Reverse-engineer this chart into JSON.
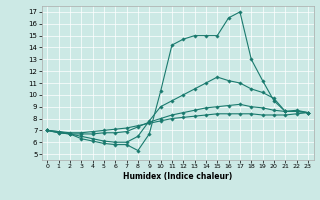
{
  "title": "",
  "xlabel": "Humidex (Indice chaleur)",
  "xlim": [
    -0.5,
    23.5
  ],
  "ylim": [
    4.5,
    17.5
  ],
  "xticks": [
    0,
    1,
    2,
    3,
    4,
    5,
    6,
    7,
    8,
    9,
    10,
    11,
    12,
    13,
    14,
    15,
    16,
    17,
    18,
    19,
    20,
    21,
    22,
    23
  ],
  "yticks": [
    5,
    6,
    7,
    8,
    9,
    10,
    11,
    12,
    13,
    14,
    15,
    16,
    17
  ],
  "bg_color": "#cce9e5",
  "line_color": "#1a7a6e",
  "line1_x": [
    0,
    1,
    2,
    3,
    4,
    5,
    6,
    7,
    8,
    9,
    10,
    11,
    12,
    13,
    14,
    15,
    16,
    17,
    18,
    19,
    20,
    21,
    22,
    23
  ],
  "line1_y": [
    7.0,
    6.9,
    6.7,
    6.3,
    6.1,
    5.9,
    5.8,
    5.8,
    5.3,
    6.7,
    10.3,
    14.2,
    14.7,
    15.0,
    15.0,
    15.0,
    16.5,
    17.0,
    13.0,
    11.2,
    9.5,
    8.6,
    8.6,
    8.5
  ],
  "line2_x": [
    0,
    1,
    2,
    3,
    4,
    5,
    6,
    7,
    8,
    9,
    10,
    11,
    12,
    13,
    14,
    15,
    16,
    17,
    18,
    19,
    20,
    21,
    22,
    23
  ],
  "line2_y": [
    7.0,
    6.8,
    6.7,
    6.5,
    6.3,
    6.1,
    6.0,
    6.0,
    6.5,
    7.8,
    9.0,
    9.5,
    10.0,
    10.5,
    11.0,
    11.5,
    11.2,
    11.0,
    10.5,
    10.2,
    9.7,
    8.6,
    8.7,
    8.5
  ],
  "line3_x": [
    0,
    1,
    2,
    3,
    4,
    5,
    6,
    7,
    8,
    9,
    10,
    11,
    12,
    13,
    14,
    15,
    16,
    17,
    18,
    19,
    20,
    21,
    22,
    23
  ],
  "line3_y": [
    7.0,
    6.8,
    6.7,
    6.7,
    6.7,
    6.8,
    6.8,
    6.9,
    7.3,
    7.7,
    8.0,
    8.3,
    8.5,
    8.7,
    8.9,
    9.0,
    9.1,
    9.2,
    9.0,
    8.9,
    8.7,
    8.6,
    8.6,
    8.5
  ],
  "line4_x": [
    0,
    1,
    2,
    3,
    4,
    5,
    6,
    7,
    8,
    9,
    10,
    11,
    12,
    13,
    14,
    15,
    16,
    17,
    18,
    19,
    20,
    21,
    22,
    23
  ],
  "line4_y": [
    7.0,
    6.9,
    6.8,
    6.8,
    6.9,
    7.0,
    7.1,
    7.2,
    7.4,
    7.6,
    7.8,
    8.0,
    8.1,
    8.2,
    8.3,
    8.4,
    8.4,
    8.4,
    8.4,
    8.3,
    8.3,
    8.3,
    8.4,
    8.5
  ]
}
